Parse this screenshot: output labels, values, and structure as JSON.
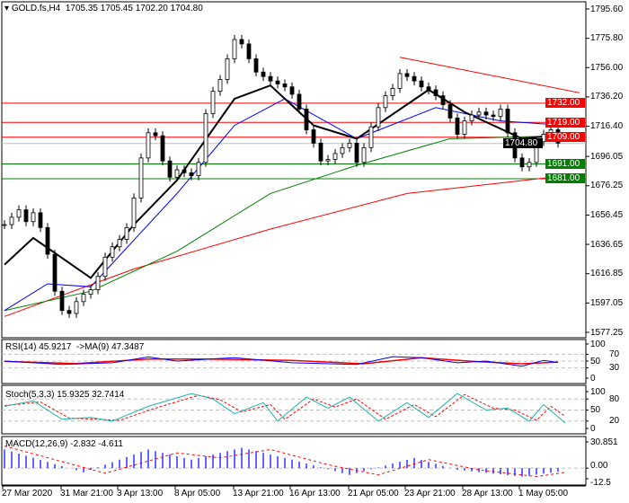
{
  "header": {
    "symbol": "GOLD.fs,H4",
    "ohlc": "1705.35 1705.45 1702.20 1704.80"
  },
  "indicators": {
    "rsi": "RSI(14) 45.9217  ->MA(9) 47.3487",
    "stoch": "Stoch(5,3,3) 15.9325 32.7414",
    "macd": "MACD(12,26,9) -2.832 -4.611"
  },
  "colors": {
    "bull": "#000000",
    "bear": "#000000",
    "ma_fast": "#000000",
    "ma_mid": "#0000ff",
    "ma_slow": "#008000",
    "ma_long": "#ff0000",
    "resistance": "#ff0000",
    "support": "#008000",
    "bid": "#c0c0c0"
  },
  "chart_data": {
    "type": "candlestick",
    "ylim": [
      1577.25,
      1795.6
    ],
    "y_ticks": [
      "1795.60",
      "1775.80",
      "1756.00",
      "1736.20",
      "1716.40",
      "1696.05",
      "1676.25",
      "1656.45",
      "1636.65",
      "1616.85",
      "1597.05",
      "1577.25"
    ],
    "x_ticks": [
      "27 Mar 2020",
      "31 Mar 21:00",
      "3 Apr 13:00",
      "8 Apr 05:00",
      "13 Apr 21:00",
      "16 Apr 13:00",
      "21 Apr 05:00",
      "23 Apr 21:00",
      "28 Apr 13:00",
      "1 May 05:00"
    ],
    "close": [
      1650,
      1655,
      1660,
      1652,
      1658,
      1648,
      1630,
      1605,
      1592,
      1590,
      1598,
      1603,
      1606,
      1615,
      1628,
      1635,
      1640,
      1648,
      1668,
      1695,
      1712,
      1710,
      1693,
      1682,
      1687,
      1685,
      1683,
      1692,
      1725,
      1740,
      1748,
      1762,
      1775,
      1772,
      1762,
      1753,
      1750,
      1747,
      1745,
      1743,
      1738,
      1728,
      1714,
      1705,
      1693,
      1694,
      1698,
      1702,
      1705,
      1692,
      1702,
      1716,
      1729,
      1737,
      1742,
      1752,
      1750,
      1747,
      1743,
      1741,
      1737,
      1731,
      1722,
      1711,
      1720,
      1724,
      1726,
      1724,
      1723,
      1728,
      1712,
      1695,
      1689,
      1692,
      1706,
      1711,
      1714,
      1705
    ],
    "moving_averages": [
      {
        "key": "ma_long",
        "points": [
          [
            0,
            1588
          ],
          [
            18,
            1620
          ],
          [
            37,
            1647
          ],
          [
            56,
            1671
          ],
          [
            78,
            1683
          ]
        ]
      },
      {
        "key": "ma_slow",
        "points": [
          [
            0,
            1592
          ],
          [
            12,
            1605
          ],
          [
            24,
            1632
          ],
          [
            37,
            1671
          ],
          [
            49,
            1690
          ],
          [
            62,
            1708
          ],
          [
            78,
            1710
          ]
        ]
      },
      {
        "key": "ma_mid",
        "points": [
          [
            0,
            1592
          ],
          [
            6,
            1610
          ],
          [
            12,
            1608
          ],
          [
            24,
            1671
          ],
          [
            32,
            1717
          ],
          [
            39,
            1735
          ],
          [
            49,
            1708
          ],
          [
            60,
            1729
          ],
          [
            69,
            1720
          ],
          [
            78,
            1717
          ]
        ]
      },
      {
        "key": "ma_fast",
        "points": [
          [
            0,
            1623
          ],
          [
            4,
            1641
          ],
          [
            12,
            1614
          ],
          [
            18,
            1650
          ],
          [
            24,
            1680
          ],
          [
            32,
            1735
          ],
          [
            37,
            1744
          ],
          [
            43,
            1717
          ],
          [
            49,
            1708
          ],
          [
            59,
            1741
          ],
          [
            64,
            1726
          ],
          [
            72,
            1708
          ],
          [
            78,
            1711
          ]
        ]
      }
    ],
    "levels": [
      {
        "value": 1732.0,
        "label": "1732.00",
        "kind": "resistance"
      },
      {
        "value": 1719.0,
        "label": "1719.00",
        "kind": "resistance"
      },
      {
        "value": 1709.0,
        "label": "1709.00",
        "kind": "resistance"
      },
      {
        "value": 1704.8,
        "label": "1704.80",
        "kind": "bid"
      },
      {
        "value": 1691.0,
        "label": "1691.00",
        "kind": "support"
      },
      {
        "value": 1681.0,
        "label": "1681.00",
        "kind": "support"
      }
    ],
    "trendline": [
      [
        55,
        1763
      ],
      [
        80,
        1739
      ]
    ],
    "rsi": {
      "ylim": [
        0,
        100
      ],
      "levels": [
        "100",
        "70",
        "50",
        "30",
        "0"
      ],
      "rsi": [
        [
          0,
          50
        ],
        [
          8,
          40
        ],
        [
          15,
          45
        ],
        [
          20,
          62
        ],
        [
          24,
          50
        ],
        [
          32,
          60
        ],
        [
          40,
          45
        ],
        [
          49,
          40
        ],
        [
          54,
          63
        ],
        [
          58,
          60
        ],
        [
          63,
          45
        ],
        [
          67,
          50
        ],
        [
          72,
          35
        ],
        [
          75,
          52
        ],
        [
          77,
          46
        ]
      ],
      "ma": [
        [
          0,
          49
        ],
        [
          10,
          43
        ],
        [
          20,
          56
        ],
        [
          28,
          56
        ],
        [
          40,
          52
        ],
        [
          50,
          42
        ],
        [
          58,
          60
        ],
        [
          66,
          48
        ],
        [
          72,
          42
        ],
        [
          77,
          47
        ]
      ]
    },
    "stoch": {
      "ylim": [
        0,
        100
      ],
      "levels": [
        "100",
        "80",
        "50",
        "20",
        "0"
      ],
      "k": [
        [
          0,
          60
        ],
        [
          4,
          75
        ],
        [
          8,
          25
        ],
        [
          12,
          30
        ],
        [
          15,
          20
        ],
        [
          20,
          60
        ],
        [
          26,
          95
        ],
        [
          29,
          80
        ],
        [
          32,
          40
        ],
        [
          36,
          70
        ],
        [
          38,
          20
        ],
        [
          42,
          85
        ],
        [
          45,
          55
        ],
        [
          48,
          85
        ],
        [
          52,
          20
        ],
        [
          56,
          70
        ],
        [
          59,
          30
        ],
        [
          63,
          95
        ],
        [
          67,
          50
        ],
        [
          70,
          55
        ],
        [
          73,
          20
        ],
        [
          75,
          65
        ],
        [
          78,
          15
        ]
      ],
      "d": [
        [
          0,
          62
        ],
        [
          5,
          72
        ],
        [
          9,
          28
        ],
        [
          13,
          25
        ],
        [
          16,
          22
        ],
        [
          21,
          55
        ],
        [
          27,
          90
        ],
        [
          30,
          78
        ],
        [
          33,
          45
        ],
        [
          37,
          65
        ],
        [
          39,
          25
        ],
        [
          43,
          80
        ],
        [
          46,
          58
        ],
        [
          49,
          80
        ],
        [
          53,
          25
        ],
        [
          57,
          65
        ],
        [
          60,
          32
        ],
        [
          64,
          92
        ],
        [
          68,
          55
        ],
        [
          71,
          50
        ],
        [
          74,
          22
        ],
        [
          76,
          60
        ],
        [
          78,
          33
        ]
      ]
    },
    "macd": {
      "ylim": [
        -12.5,
        30.851
      ],
      "levels": [
        "30.851",
        "0.00",
        "-12.5"
      ],
      "hist": [
        [
          0,
          22
        ],
        [
          11,
          -5
        ],
        [
          20,
          22
        ],
        [
          26,
          10
        ],
        [
          33,
          24
        ],
        [
          40,
          10
        ],
        [
          48,
          -8
        ],
        [
          57,
          12
        ],
        [
          63,
          -2
        ],
        [
          72,
          -10
        ],
        [
          78,
          -3
        ]
      ],
      "signal": [
        [
          0,
          26
        ],
        [
          14,
          -6
        ],
        [
          24,
          18
        ],
        [
          30,
          12
        ],
        [
          37,
          22
        ],
        [
          45,
          4
        ],
        [
          52,
          -8
        ],
        [
          59,
          10
        ],
        [
          66,
          -2
        ],
        [
          74,
          -10
        ],
        [
          78,
          -5
        ]
      ]
    }
  }
}
